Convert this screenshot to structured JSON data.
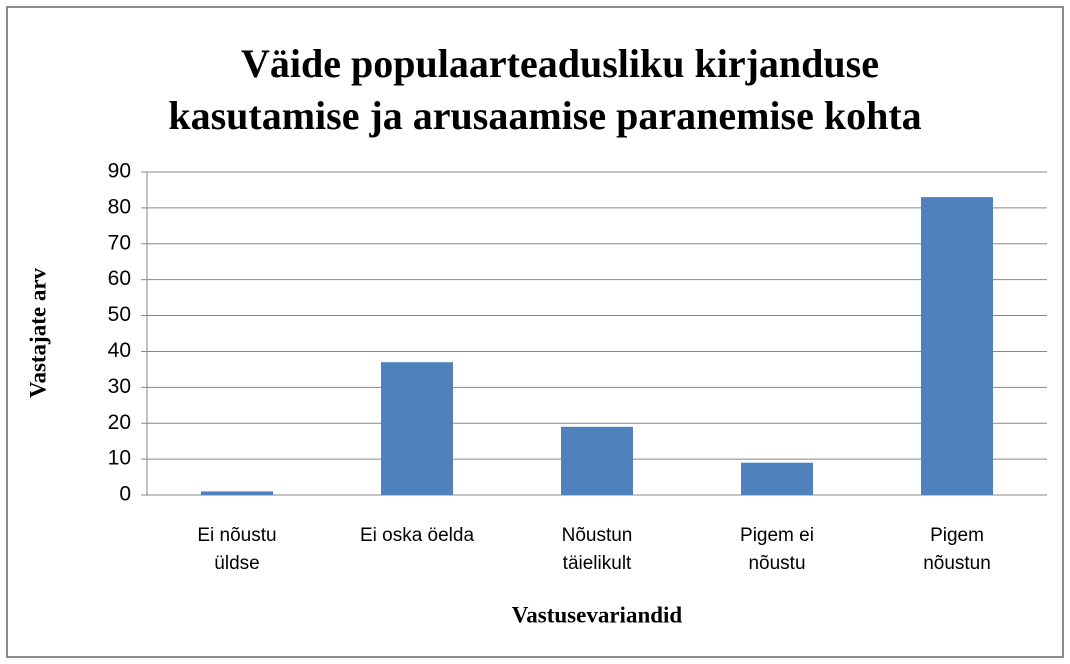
{
  "chart_data": {
    "type": "bar",
    "title": [
      "Väide populaarteadusliku  kirjanduse",
      "kasutamise  ja  arusaamise  paranemise  kohta"
    ],
    "x_label": "Vastusevariandid",
    "y_label": "Vastajate arv",
    "categories": [
      "Ei nõustu üldse",
      "Ei oska öelda",
      "Nõustun täielikult",
      "Pigem ei nõustu",
      "Pigem nõustun"
    ],
    "values": [
      1,
      37,
      19,
      9,
      83
    ],
    "color": "#4f81bd",
    "ylim": [
      0,
      90
    ],
    "yticks": [
      0,
      10,
      20,
      30,
      40,
      50,
      60,
      70,
      80,
      90
    ],
    "grid": true
  }
}
